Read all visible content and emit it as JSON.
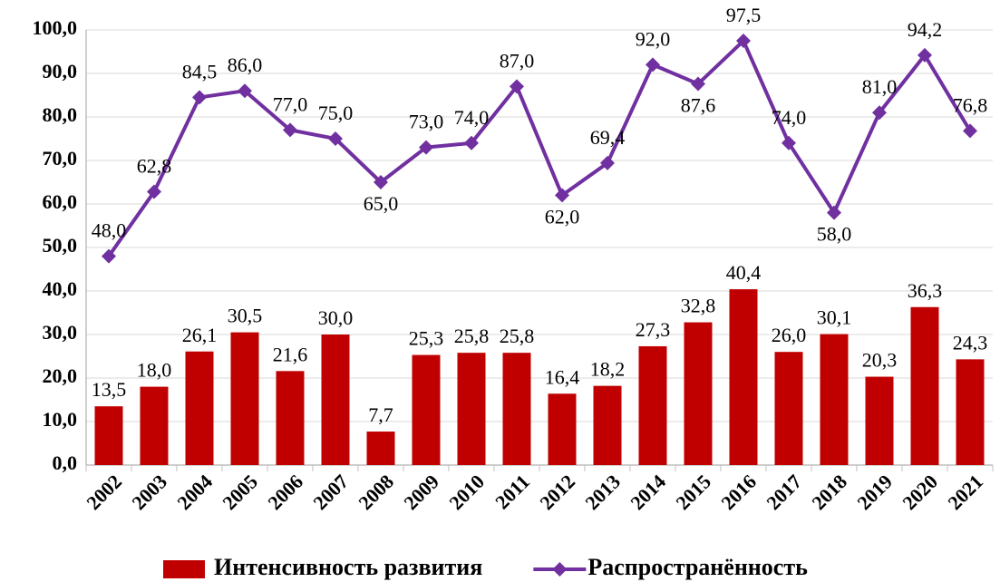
{
  "chart_data": {
    "type": "bar",
    "categories": [
      "2002",
      "2003",
      "2004",
      "2005",
      "2006",
      "2007",
      "2008",
      "2009",
      "2010",
      "2011",
      "2012",
      "2013",
      "2014",
      "2015",
      "2016",
      "2017",
      "2018",
      "2019",
      "2020",
      "2021"
    ],
    "series": [
      {
        "name": "Интенсивность развития",
        "type": "bar",
        "color": "#c00000",
        "values": [
          13.5,
          18.0,
          26.1,
          30.5,
          21.6,
          30.0,
          7.7,
          25.3,
          25.8,
          25.8,
          16.4,
          18.2,
          27.3,
          32.8,
          40.4,
          26.0,
          30.1,
          20.3,
          36.3,
          24.3
        ],
        "value_labels": [
          "13,5",
          "18,0",
          "26,1",
          "30,5",
          "21,6",
          "30,0",
          "7,7",
          "25,3",
          "25,8",
          "25,8",
          "16,4",
          "18,2",
          "27,3",
          "32,8",
          "40,4",
          "26,0",
          "30,1",
          "20,3",
          "36,3",
          "24,3"
        ]
      },
      {
        "name": "Распространённость",
        "type": "line",
        "color": "#7030a0",
        "values": [
          48.0,
          62.8,
          84.5,
          86.0,
          77.0,
          75.0,
          65.0,
          73.0,
          74.0,
          87.0,
          62.0,
          69.4,
          92.0,
          87.6,
          97.5,
          74.0,
          58.0,
          81.0,
          94.2,
          76.8
        ],
        "value_labels": [
          "48,0",
          "62,8",
          "84,5",
          "86,0",
          "77,0",
          "75,0",
          "65,0",
          "73,0",
          "74,0",
          "87,0",
          "62,0",
          "69,4",
          "92,0",
          "87,6",
          "97,5",
          "74,0",
          "58,0",
          "81,0",
          "94,2",
          "76,8"
        ]
      }
    ],
    "ylim": [
      0,
      100
    ],
    "yticks": [
      {
        "value": 0,
        "label": "0,0"
      },
      {
        "value": 10,
        "label": "10,0"
      },
      {
        "value": 20,
        "label": "20,0"
      },
      {
        "value": 30,
        "label": "30,0"
      },
      {
        "value": 40,
        "label": "40,0"
      },
      {
        "value": 50,
        "label": "50,0"
      },
      {
        "value": 60,
        "label": "60,0"
      },
      {
        "value": 70,
        "label": "70,0"
      },
      {
        "value": 80,
        "label": "80,0"
      },
      {
        "value": 90,
        "label": "90,0"
      },
      {
        "value": 100,
        "label": "100,0"
      }
    ],
    "grid": true,
    "legend": "bottom"
  }
}
